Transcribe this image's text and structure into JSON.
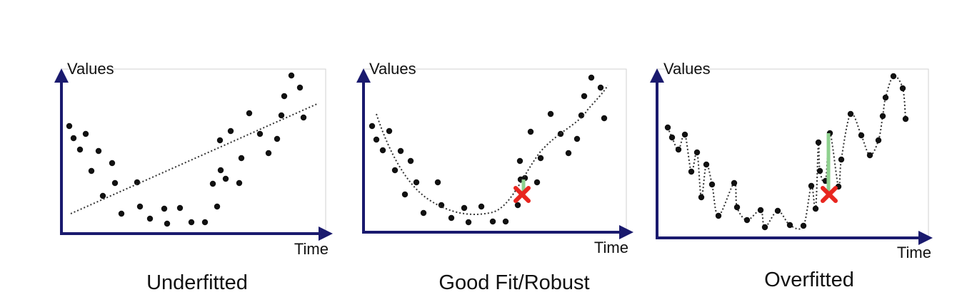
{
  "colors": {
    "axis": "#1a1a6e",
    "frame": "#d0d0d0",
    "point": "#111111",
    "curve": "#333333",
    "error_line": "#8fd18f",
    "error_marker": "#e8261f"
  },
  "panels": [
    {
      "caption": "Underfitted",
      "y_label": "Values",
      "x_label": "Time",
      "fit": "linear",
      "marker_icon": null
    },
    {
      "caption": "Good Fit/Robust",
      "y_label": "Values",
      "x_label": "Time",
      "fit": "smooth",
      "marker_icon": "red-x-icon"
    },
    {
      "caption": "Overfitted",
      "y_label": "Values",
      "x_label": "Time",
      "fit": "interpolating",
      "marker_icon": "red-x-icon"
    }
  ]
}
